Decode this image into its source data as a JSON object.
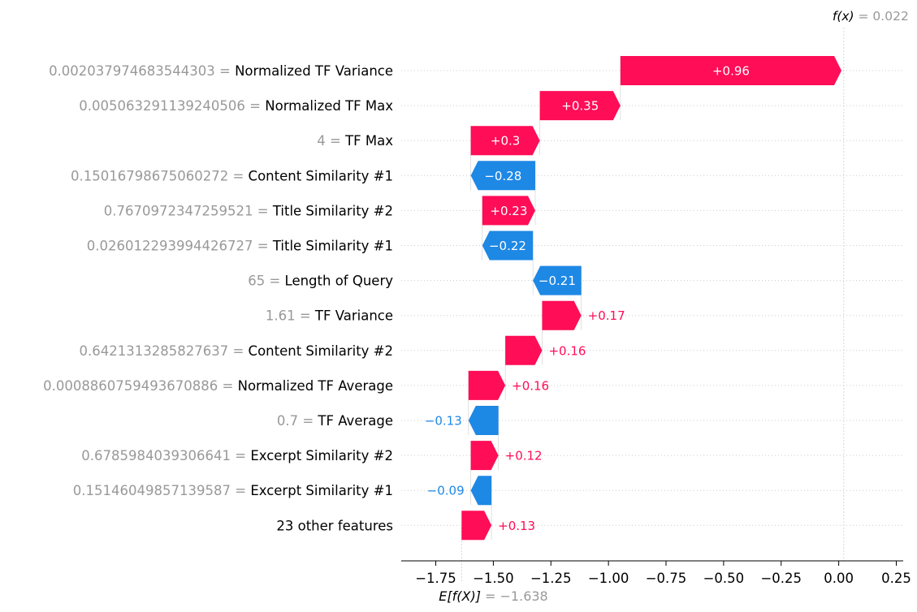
{
  "chart_data": {
    "type": "waterfall",
    "base_value": -1.638,
    "output_value": 0.022,
    "fx_label": "f(x)",
    "fx_value_text": "= 0.022",
    "ex_label": "E[f(X)]",
    "ex_value_text": "= −1.638",
    "xlim": [
      -1.9,
      0.28
    ],
    "xticks": [
      -1.75,
      -1.5,
      -1.25,
      -1.0,
      -0.75,
      -0.5,
      -0.25,
      0.0,
      0.25
    ],
    "xtick_labels": [
      "−1.75",
      "−1.50",
      "−1.25",
      "−1.00",
      "−0.75",
      "−0.50",
      "−0.25",
      "0.00",
      "0.25"
    ],
    "features": [
      {
        "value": "0.002037974683544303",
        "name": "Normalized TF Variance",
        "contribution": 0.96,
        "label": "+0.96"
      },
      {
        "value": "0.005063291139240506",
        "name": "Normalized TF Max",
        "contribution": 0.35,
        "label": "+0.35"
      },
      {
        "value": "4",
        "name": "TF Max",
        "contribution": 0.3,
        "label": "+0.3"
      },
      {
        "value": "0.15016798675060272",
        "name": "Content Similarity #1",
        "contribution": -0.28,
        "label": "−0.28"
      },
      {
        "value": "0.7670972347259521",
        "name": "Title Similarity #2",
        "contribution": 0.23,
        "label": "+0.23"
      },
      {
        "value": "0.026012293994426727",
        "name": "Title Similarity #1",
        "contribution": -0.22,
        "label": "−0.22"
      },
      {
        "value": "65",
        "name": "Length of Query",
        "contribution": -0.21,
        "label": "−0.21"
      },
      {
        "value": "1.61",
        "name": "TF Variance",
        "contribution": 0.17,
        "label": "+0.17"
      },
      {
        "value": "0.6421313285827637",
        "name": "Content Similarity #2",
        "contribution": 0.16,
        "label": "+0.16"
      },
      {
        "value": "0.0008860759493670886",
        "name": "Normalized TF Average",
        "contribution": 0.16,
        "label": "+0.16"
      },
      {
        "value": "0.7",
        "name": "TF Average",
        "contribution": -0.13,
        "label": "−0.13"
      },
      {
        "value": "0.6785984039306641",
        "name": "Excerpt Similarity #2",
        "contribution": 0.12,
        "label": "+0.12"
      },
      {
        "value": "0.15146049857139587",
        "name": "Excerpt Similarity #1",
        "contribution": -0.09,
        "label": "−0.09"
      },
      {
        "value": "",
        "name": "23 other features",
        "contribution": 0.13,
        "label": "+0.13"
      }
    ],
    "colors": {
      "positive": "#ff0d57",
      "negative": "#1e88e5",
      "label_positive": "#ff0d57",
      "label_negative": "#1e88e5",
      "muted": "#999999",
      "grid": "#cccccc"
    }
  }
}
